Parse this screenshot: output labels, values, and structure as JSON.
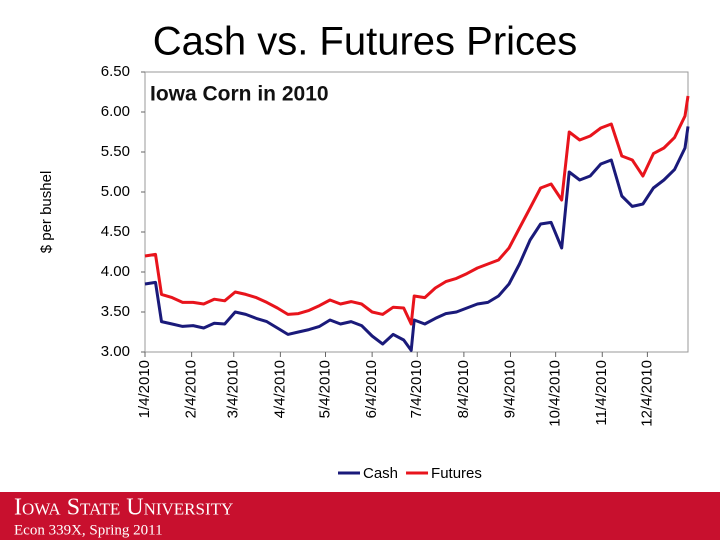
{
  "chart_data": {
    "type": "line",
    "title": "Cash vs. Futures Prices",
    "subtitle": "Iowa Corn in 2010",
    "y_label": "$ per bushel",
    "x": [
      "1/4/2010",
      "1/11/2010",
      "1/15/2010",
      "1/22/2010",
      "1/29/2010",
      "2/5/2010",
      "2/12/2010",
      "2/19/2010",
      "2/26/2010",
      "3/5/2010",
      "3/12/2010",
      "3/19/2010",
      "3/26/2010",
      "4/2/2010",
      "4/9/2010",
      "4/16/2010",
      "4/23/2010",
      "4/30/2010",
      "5/7/2010",
      "5/14/2010",
      "5/21/2010",
      "5/28/2010",
      "6/4/2010",
      "6/11/2010",
      "6/18/2010",
      "6/25/2010",
      "6/30/2010",
      "7/2/2010",
      "7/9/2010",
      "7/16/2010",
      "7/23/2010",
      "7/30/2010",
      "8/6/2010",
      "8/13/2010",
      "8/20/2010",
      "8/27/2010",
      "9/3/2010",
      "9/10/2010",
      "9/17/2010",
      "9/24/2010",
      "10/1/2010",
      "10/8/2010",
      "10/13/2010",
      "10/20/2010",
      "10/27/2010",
      "11/3/2010",
      "11/10/2010",
      "11/17/2010",
      "11/24/2010",
      "12/1/2010",
      "12/8/2010",
      "12/15/2010",
      "12/22/2010",
      "12/29/2010",
      "12/31/2010"
    ],
    "series": [
      {
        "name": "Cash",
        "color": "#1a1a7a",
        "values": [
          3.85,
          3.87,
          3.38,
          3.35,
          3.32,
          3.33,
          3.3,
          3.36,
          3.35,
          3.5,
          3.47,
          3.42,
          3.38,
          3.3,
          3.22,
          3.25,
          3.28,
          3.32,
          3.4,
          3.35,
          3.38,
          3.33,
          3.2,
          3.1,
          3.22,
          3.15,
          3.02,
          3.4,
          3.35,
          3.42,
          3.48,
          3.5,
          3.55,
          3.6,
          3.62,
          3.7,
          3.85,
          4.1,
          4.4,
          4.6,
          4.62,
          4.3,
          5.25,
          5.15,
          5.2,
          5.35,
          5.4,
          4.95,
          4.82,
          4.85,
          5.05,
          5.15,
          5.28,
          5.55,
          5.82
        ]
      },
      {
        "name": "Futures",
        "color": "#e8141c",
        "values": [
          4.2,
          4.22,
          3.72,
          3.68,
          3.62,
          3.62,
          3.6,
          3.66,
          3.64,
          3.75,
          3.72,
          3.68,
          3.62,
          3.55,
          3.47,
          3.48,
          3.52,
          3.58,
          3.65,
          3.6,
          3.63,
          3.6,
          3.5,
          3.47,
          3.56,
          3.55,
          3.35,
          3.7,
          3.68,
          3.8,
          3.88,
          3.92,
          3.98,
          4.05,
          4.1,
          4.15,
          4.3,
          4.55,
          4.8,
          5.05,
          5.1,
          4.9,
          5.75,
          5.65,
          5.7,
          5.8,
          5.85,
          5.45,
          5.4,
          5.2,
          5.48,
          5.55,
          5.68,
          5.95,
          6.2
        ]
      }
    ],
    "xlim": [
      "1/4/2010",
      "12/31/2010"
    ],
    "xticks": [
      "1/4/2010",
      "2/4/2010",
      "3/4/2010",
      "4/4/2010",
      "5/4/2010",
      "6/4/2010",
      "7/4/2010",
      "8/4/2010",
      "9/4/2010",
      "10/4/2010",
      "11/4/2010",
      "12/4/2010"
    ],
    "ylim": [
      3,
      6.5
    ],
    "yticks": [
      {
        "value": 3,
        "label": "3.00"
      },
      {
        "value": 3.5,
        "label": "3.50"
      },
      {
        "value": 4,
        "label": "4.00"
      },
      {
        "value": 4.5,
        "label": "4.50"
      },
      {
        "value": 5,
        "label": "5.00"
      },
      {
        "value": 5.5,
        "label": "5.50"
      },
      {
        "value": 6,
        "label": "6.00"
      },
      {
        "value": 6.5,
        "label": "6.50"
      }
    ],
    "legend": "bottom"
  },
  "footer": {
    "university": "Iowa State University",
    "course": "Econ 339X, Spring 2011"
  }
}
